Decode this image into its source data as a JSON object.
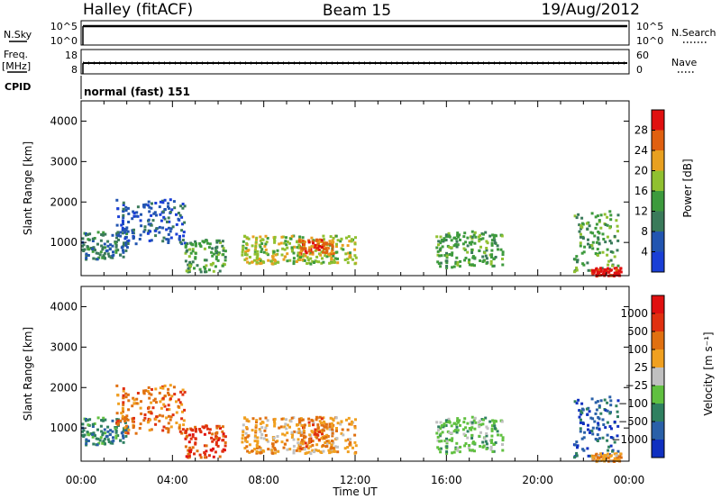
{
  "header": {
    "station": "Halley (fitACF)",
    "beam": "Beam 15",
    "date": "19/Aug/2012"
  },
  "side_labels": {
    "nsky": "N.Sky",
    "nsearch": "N.Search",
    "freq": "Freq.",
    "freq_unit": "[MHz]",
    "nave": "Nave",
    "cpid": "CPID",
    "cpid_value": "normal (fast) 151"
  },
  "small_axes": {
    "nsky_top": "10^5",
    "nsky_bottom": "10^0",
    "nsearch_top": "10^5",
    "nsearch_bottom": "10^0",
    "freq_top": "18",
    "freq_bottom": "8",
    "nave_top": "60",
    "nave_bottom": "0"
  },
  "colors": {
    "power": [
      "#1a3fd6",
      "#2255b0",
      "#3a7a5a",
      "#3d9a3d",
      "#90c030",
      "#e8a020",
      "#e06010",
      "#e01010"
    ],
    "velocity": [
      "#1030c0",
      "#2a60a8",
      "#2f8060",
      "#60c040",
      "#c0c0c0",
      "#f0a020",
      "#e07010",
      "#e03010",
      "#e01010"
    ]
  },
  "chart_data": [
    {
      "type": "heatmap",
      "name": "power",
      "ylabel": "Slant Range [km]",
      "yticks": [
        "1000",
        "2000",
        "3000",
        "4000"
      ],
      "ylim": [
        180,
        4500
      ],
      "xlabel": "Time UT",
      "xticks": [
        "00:00",
        "04:00",
        "08:00",
        "12:00",
        "16:00",
        "20:00",
        "00:00"
      ],
      "xlim_hours": [
        0,
        24
      ],
      "colorbar": {
        "label": "Power [dB]",
        "ticks": [
          "4",
          "8",
          "12",
          "16",
          "20",
          "24",
          "28"
        ]
      },
      "regions": [
        {
          "t0": 0.0,
          "t1": 2.0,
          "r0": 600,
          "r1": 1300,
          "level": 2
        },
        {
          "t0": 1.5,
          "t1": 4.5,
          "r0": 1000,
          "r1": 2100,
          "level": 1
        },
        {
          "t0": 4.5,
          "t1": 6.3,
          "r0": 300,
          "r1": 1100,
          "level": 3
        },
        {
          "t0": 7.0,
          "t1": 12.0,
          "r0": 500,
          "r1": 1200,
          "level": 4
        },
        {
          "t0": 9.5,
          "t1": 11.0,
          "r0": 700,
          "r1": 1100,
          "level": 6
        },
        {
          "t0": 15.5,
          "t1": 18.5,
          "r0": 400,
          "r1": 1300,
          "level": 3
        },
        {
          "t0": 21.5,
          "t1": 23.5,
          "r0": 300,
          "r1": 1800,
          "level": 3
        },
        {
          "t0": 22.3,
          "t1": 23.6,
          "r0": 200,
          "r1": 400,
          "level": 7
        }
      ]
    },
    {
      "type": "heatmap",
      "name": "velocity",
      "ylabel": "Slant Range [km]",
      "yticks": [
        "1000",
        "2000",
        "3000",
        "4000"
      ],
      "ylim": [
        180,
        4500
      ],
      "xlabel": "Time UT",
      "xticks": [
        "00:00",
        "04:00",
        "08:00",
        "12:00",
        "16:00",
        "20:00",
        "00:00"
      ],
      "xlim_hours": [
        0,
        24
      ],
      "colorbar": {
        "label": "Velocity [m s⁻¹]",
        "ticks": [
          "1000",
          "500",
          "100",
          "25",
          "−25",
          "−100",
          "−500",
          "−1000"
        ]
      },
      "regions": [
        {
          "t0": 0.0,
          "t1": 2.0,
          "r0": 600,
          "r1": 1300,
          "level": 2
        },
        {
          "t0": 1.5,
          "t1": 4.5,
          "r0": 900,
          "r1": 2100,
          "level": 6
        },
        {
          "t0": 4.5,
          "t1": 6.3,
          "r0": 300,
          "r1": 1100,
          "level": 7
        },
        {
          "t0": 7.0,
          "t1": 12.0,
          "r0": 400,
          "r1": 1300,
          "level": 5
        },
        {
          "t0": 9.5,
          "t1": 11.0,
          "r0": 400,
          "r1": 1300,
          "level": 6
        },
        {
          "t0": 15.5,
          "t1": 18.5,
          "r0": 400,
          "r1": 1300,
          "level": 3
        },
        {
          "t0": 21.5,
          "t1": 23.5,
          "r0": 300,
          "r1": 1800,
          "level": 1
        },
        {
          "t0": 22.3,
          "t1": 23.6,
          "r0": 200,
          "r1": 400,
          "level": 5
        }
      ]
    }
  ]
}
